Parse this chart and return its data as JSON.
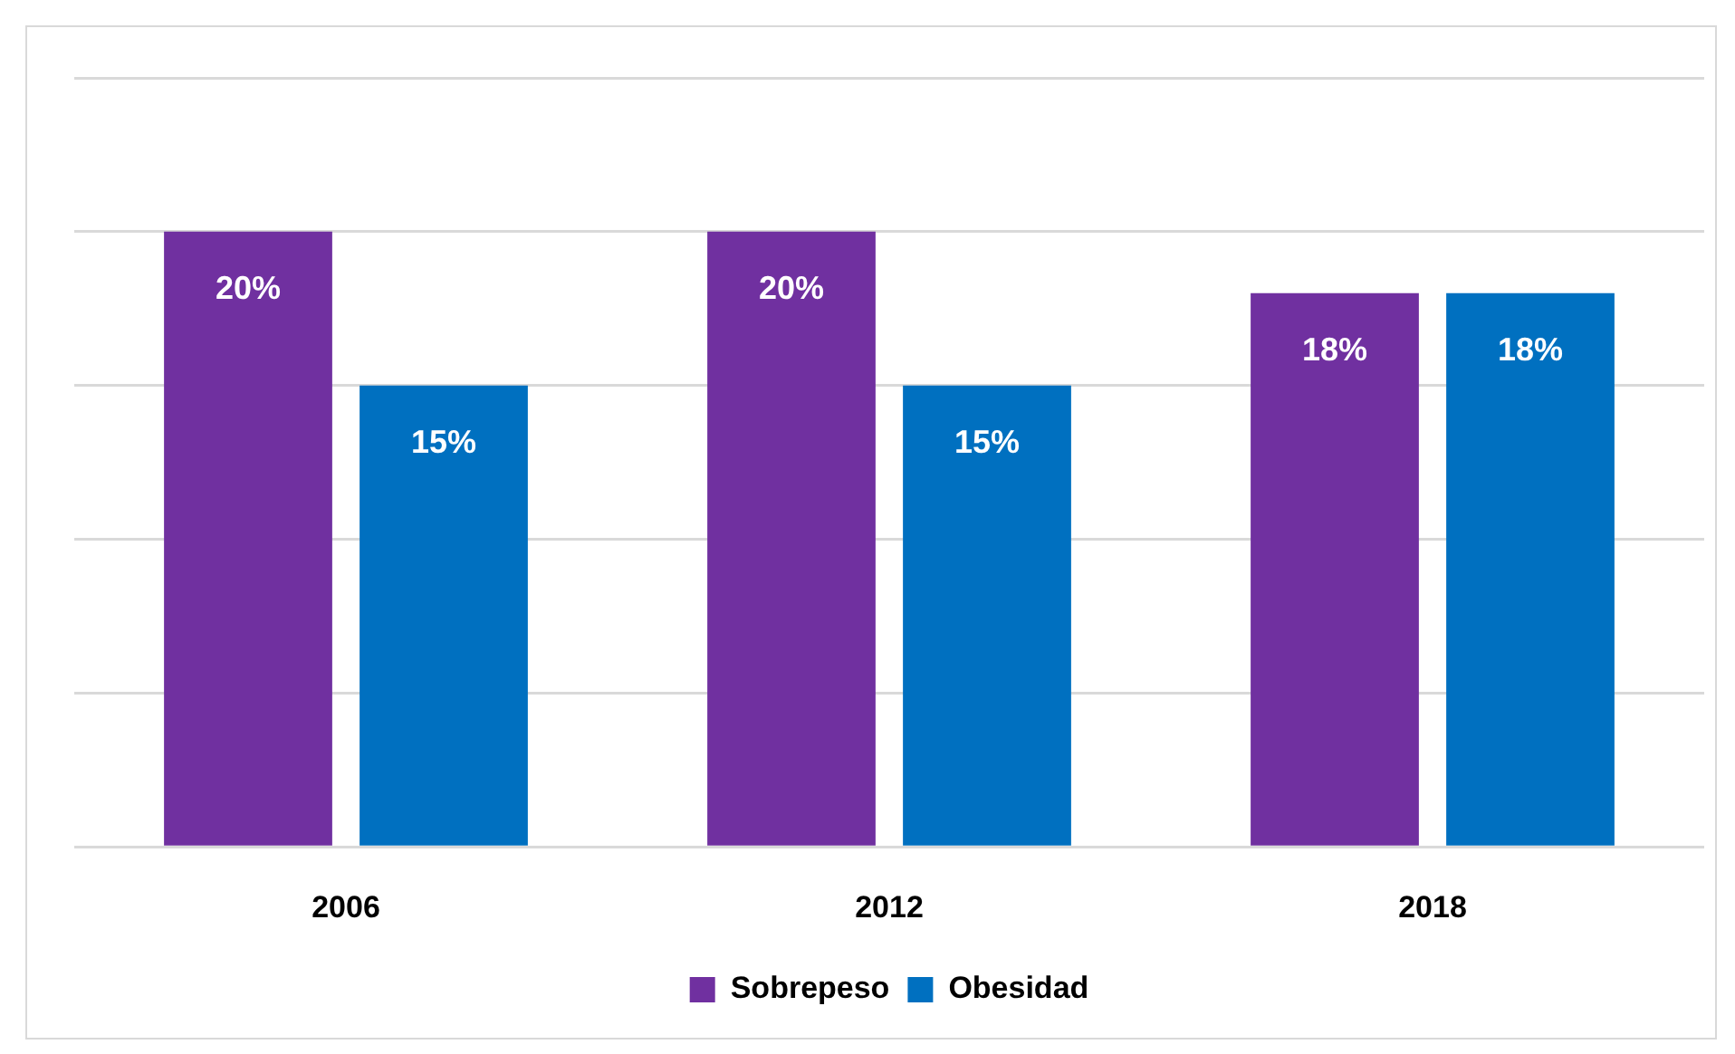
{
  "chart_data": {
    "type": "bar",
    "categories": [
      "2006",
      "2012",
      "2018"
    ],
    "series": [
      {
        "name": "Sobrepeso",
        "color": "#7030a0",
        "values": [
          20,
          20,
          18
        ],
        "value_labels": [
          "20%",
          "20%",
          "18%"
        ]
      },
      {
        "name": "Obesidad",
        "color": "#0070c0",
        "values": [
          15,
          15,
          18
        ],
        "value_labels": [
          "15%",
          "15%",
          "18%"
        ]
      }
    ],
    "tick_labels": "x",
    "grid": "y",
    "legend": "bottom"
  }
}
